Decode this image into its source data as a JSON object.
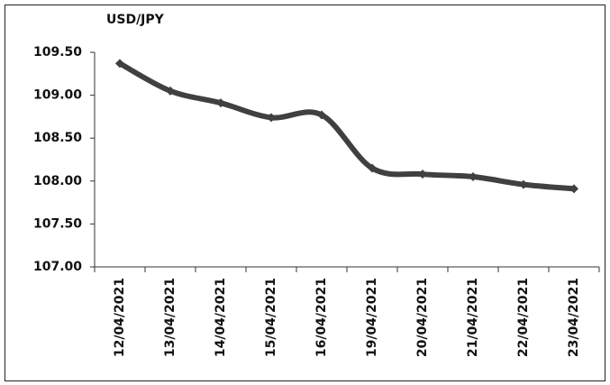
{
  "chart_data": {
    "type": "line",
    "title": "USD/JPY",
    "categories": [
      "12/04/2021",
      "13/04/2021",
      "14/04/2021",
      "15/04/2021",
      "16/04/2021",
      "19/04/2021",
      "20/04/2021",
      "21/04/2021",
      "22/04/2021",
      "23/04/2021"
    ],
    "values": [
      109.37,
      109.05,
      108.91,
      108.74,
      108.77,
      108.15,
      108.08,
      108.05,
      107.96,
      107.91
    ],
    "color": "#404040",
    "ylim": [
      107,
      109.5
    ],
    "yticks": [
      {
        "value": 107,
        "label": "107.00"
      },
      {
        "value": 107.5,
        "label": "107.50"
      },
      {
        "value": 108,
        "label": "108.00"
      },
      {
        "value": 108.5,
        "label": "108.50"
      },
      {
        "value": 109,
        "label": "109.00"
      },
      {
        "value": 109.5,
        "label": "109.50"
      }
    ],
    "smooth": true
  }
}
